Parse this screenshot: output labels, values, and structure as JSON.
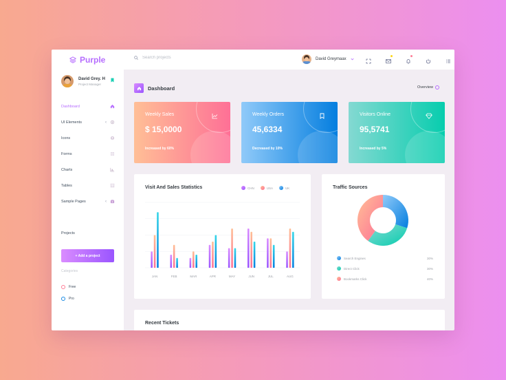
{
  "brand": {
    "name": "Purple",
    "color": "#b66dff"
  },
  "search": {
    "placeholder": "Search projects"
  },
  "topbar": {
    "user_name": "David Greymaax",
    "icons": [
      "fullscreen-icon",
      "mail-icon",
      "bell-icon",
      "power-icon",
      "menu-icon"
    ]
  },
  "sidebar": {
    "profile": {
      "name": "David Grey. H",
      "role": "Project Manager"
    },
    "items": [
      {
        "label": "Dashboard",
        "icon": "home-icon",
        "active": true
      },
      {
        "label": "UI Elements",
        "icon": "crosshair-icon",
        "expandable": true
      },
      {
        "label": "Icons",
        "icon": "contacts-icon"
      },
      {
        "label": "Forms",
        "icon": "list-icon"
      },
      {
        "label": "Charts",
        "icon": "chart-icon"
      },
      {
        "label": "Tables",
        "icon": "table-icon"
      },
      {
        "label": "Sample Pages",
        "icon": "medical-bag-icon",
        "expandable": true
      }
    ],
    "projects_label": "Projects",
    "add_project_label": "+ Add a project",
    "categories_label": "Categories",
    "categories": [
      {
        "label": "Free",
        "color": "#fe7c96"
      },
      {
        "label": "Pro",
        "color": "#198ae3"
      }
    ]
  },
  "page": {
    "title": "Dashboard",
    "overview_label": "Overview"
  },
  "cards": [
    {
      "title": "Weekly Sales",
      "value": "$ 15,0000",
      "sub": "Increased by 60%",
      "icon": "chart-line-icon"
    },
    {
      "title": "Weekly Orders",
      "value": "45,6334",
      "sub": "Decreased by 10%",
      "icon": "bookmark-icon"
    },
    {
      "title": "Visitors Online",
      "value": "95,5741",
      "sub": "Increased by 5%",
      "icon": "diamond-icon"
    }
  ],
  "stats_panel": {
    "title": "Visit And Sales Statistics",
    "legend": [
      {
        "label": "CHN",
        "color": "#b66dff"
      },
      {
        "label": "USA",
        "color": "#fe7c96"
      },
      {
        "label": "UK",
        "color": "#3fb8e7"
      }
    ]
  },
  "chart_data": {
    "type": "bar",
    "categories": [
      "JAN",
      "FEB",
      "MAR",
      "APR",
      "MAY",
      "JUN",
      "JUL",
      "AUG"
    ],
    "series": [
      {
        "name": "CHN",
        "values": [
          25,
          20,
          15,
          35,
          30,
          60,
          45,
          25
        ]
      },
      {
        "name": "USA",
        "values": [
          50,
          35,
          25,
          40,
          60,
          55,
          45,
          60
        ]
      },
      {
        "name": "UK",
        "values": [
          85,
          15,
          20,
          50,
          30,
          40,
          35,
          55
        ]
      }
    ],
    "ylim": [
      0,
      100
    ],
    "grid": true,
    "legend_position": "top-right"
  },
  "traffic_panel": {
    "title": "Traffic Sources",
    "rows": [
      {
        "label": "Search Engines",
        "value": "30%",
        "color": "#3fb8e7"
      },
      {
        "label": "Direct Click",
        "value": "30%",
        "color": "#1bcfb4"
      },
      {
        "label": "Bookmarks Click",
        "value": "40%",
        "color": "#fe7c96"
      }
    ]
  },
  "tickets_panel": {
    "title": "Recent Tickets"
  }
}
